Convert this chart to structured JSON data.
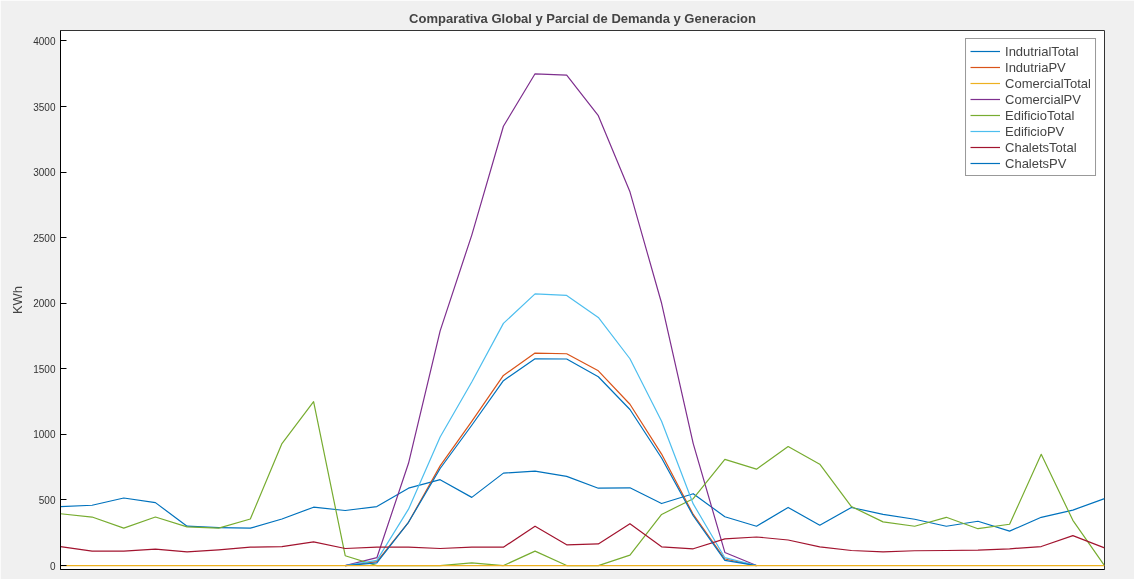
{
  "chart_data": {
    "type": "line",
    "title": "Comparativa Global y Parcial de Demanda y Generacion",
    "ylabel": "KWh",
    "categories": [
      null,
      null,
      null,
      null,
      null,
      null,
      null,
      null,
      null,
      null,
      null,
      null,
      null,
      null,
      null,
      null,
      null,
      null,
      null,
      null,
      null,
      null,
      null,
      null,
      null,
      null,
      null,
      null,
      null,
      null,
      null,
      null,
      null,
      null
    ],
    "ylim": [
      -30,
      4080
    ],
    "yticks": [
      0,
      500,
      1000,
      1500,
      2000,
      2500,
      3000,
      3500,
      4000
    ],
    "tick_labels": "y",
    "legend": "top right",
    "grid": false,
    "marker": "none",
    "line_style": "solid",
    "series": [
      {
        "name": "IndutrialTotal",
        "color": "#0072bd",
        "values": [
          450,
          460,
          515,
          480,
          300,
          290,
          285,
          355,
          445,
          420,
          450,
          590,
          655,
          520,
          705,
          720,
          680,
          590,
          593,
          473,
          548,
          372,
          300,
          443,
          308,
          443,
          390,
          353,
          300,
          338,
          263,
          368,
          423,
          510
        ]
      },
      {
        "name": "IndutriaPV",
        "color": "#d95319",
        "values": [
          null,
          null,
          null,
          null,
          null,
          null,
          null,
          null,
          null,
          0,
          30,
          330,
          760,
          1100,
          1450,
          1620,
          1615,
          1485,
          1230,
          850,
          390,
          50,
          0,
          null,
          null,
          null,
          null,
          null,
          null,
          null,
          null,
          null,
          null,
          null
        ]
      },
      {
        "name": "ComercialTotal",
        "color": "#edb120",
        "values": [
          0,
          0,
          0,
          0,
          0,
          0,
          0,
          0,
          0,
          0,
          0,
          0,
          0,
          0,
          0,
          0,
          0,
          0,
          0,
          0,
          0,
          0,
          0,
          0,
          0,
          0,
          0,
          0,
          0,
          0,
          0,
          0,
          0,
          0
        ]
      },
      {
        "name": "ComercialPV",
        "color": "#7e2f8e",
        "values": [
          null,
          null,
          null,
          null,
          null,
          null,
          null,
          null,
          null,
          0,
          60,
          780,
          1790,
          2520,
          3350,
          3750,
          3740,
          3430,
          2850,
          2000,
          930,
          100,
          0,
          null,
          null,
          null,
          null,
          null,
          null,
          null,
          null,
          null,
          null,
          null
        ]
      },
      {
        "name": "EdificioTotal",
        "color": "#77ac30",
        "values": [
          395,
          370,
          285,
          370,
          295,
          285,
          355,
          930,
          1250,
          75,
          0,
          0,
          0,
          20,
          0,
          110,
          0,
          0,
          80,
          390,
          510,
          810,
          735,
          908,
          773,
          450,
          333,
          300,
          368,
          281,
          315,
          848,
          345,
          0
        ]
      },
      {
        "name": "EdificioPV",
        "color": "#4dbeee",
        "values": [
          null,
          null,
          null,
          null,
          null,
          null,
          null,
          null,
          null,
          0,
          40,
          430,
          980,
          1400,
          1847,
          2072,
          2060,
          1892,
          1577,
          1100,
          470,
          60,
          0,
          null,
          null,
          null,
          null,
          null,
          null,
          null,
          null,
          null,
          null,
          null
        ]
      },
      {
        "name": "ChaletsTotal",
        "color": "#a2142f",
        "values": [
          145,
          110,
          110,
          125,
          105,
          120,
          140,
          145,
          180,
          130,
          140,
          140,
          130,
          140,
          140,
          300,
          158,
          165,
          319,
          143,
          128,
          203,
          218,
          195,
          143,
          115,
          105,
          113,
          115,
          118,
          128,
          145,
          228,
          135
        ]
      },
      {
        "name": "ChaletsPV",
        "color": "#0072bd",
        "values": [
          null,
          null,
          null,
          null,
          null,
          null,
          null,
          null,
          null,
          0,
          20,
          330,
          740,
          1070,
          1410,
          1577,
          1575,
          1440,
          1190,
          820,
          380,
          40,
          0,
          null,
          null,
          null,
          null,
          null,
          null,
          null,
          null,
          null,
          null,
          null
        ]
      }
    ]
  }
}
